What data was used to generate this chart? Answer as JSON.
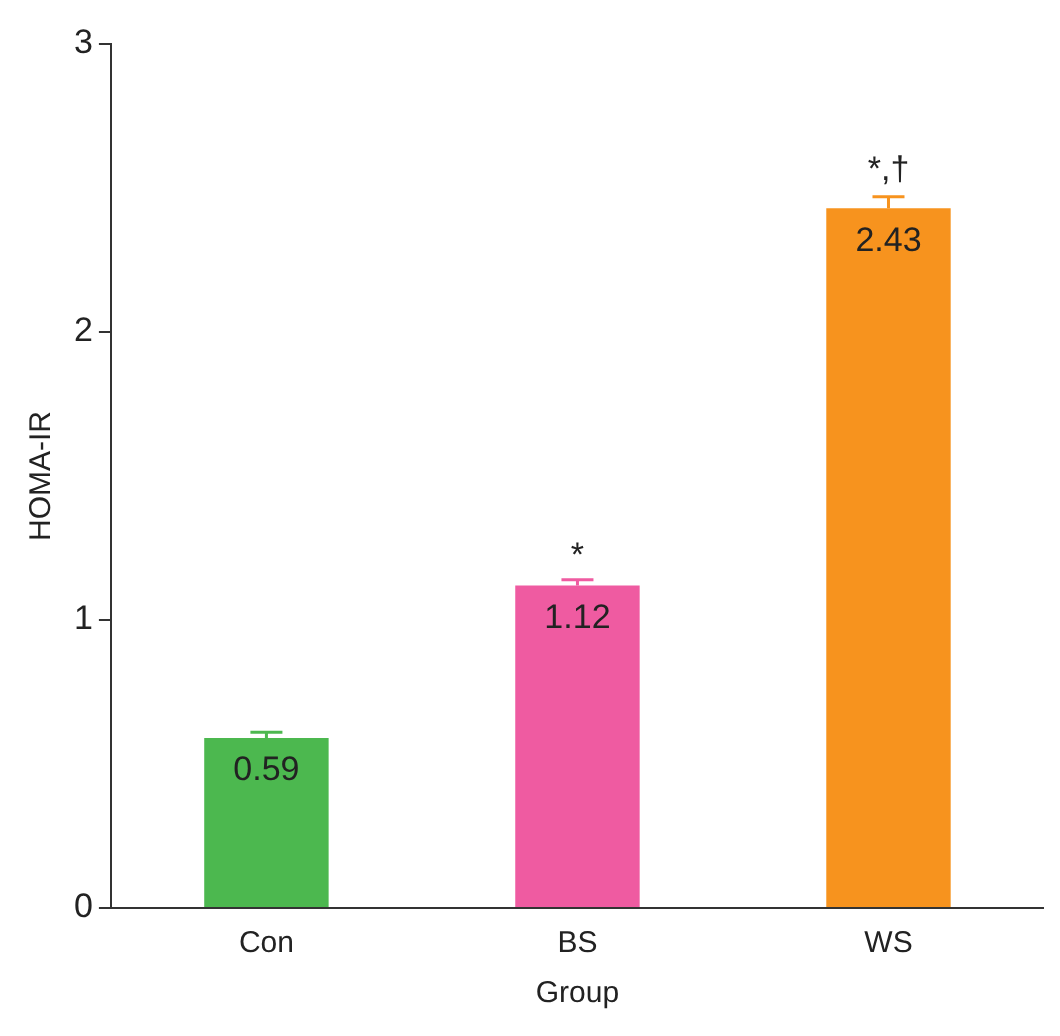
{
  "chart_data": {
    "type": "bar",
    "xlabel": "Group",
    "ylabel": "HOMA-IR",
    "categories": [
      "Con",
      "BS",
      "WS"
    ],
    "values": [
      0.59,
      1.12,
      2.43
    ],
    "colors": [
      "#4cb84f",
      "#ef5ba1",
      "#f7931e"
    ],
    "errors": [
      [
        0.59,
        0.61
      ],
      [
        1.12,
        1.14
      ],
      [
        2.43,
        2.47
      ]
    ],
    "data_labels": true,
    "ylim": [
      0,
      3
    ],
    "yticks": [
      0,
      1,
      2,
      3
    ],
    "grid": false,
    "legend": false,
    "annotations": [
      {
        "text": "*",
        "x": "BS",
        "y": 1.16
      },
      {
        "text": "*,†",
        "x": "WS",
        "y": 2.5
      }
    ]
  }
}
